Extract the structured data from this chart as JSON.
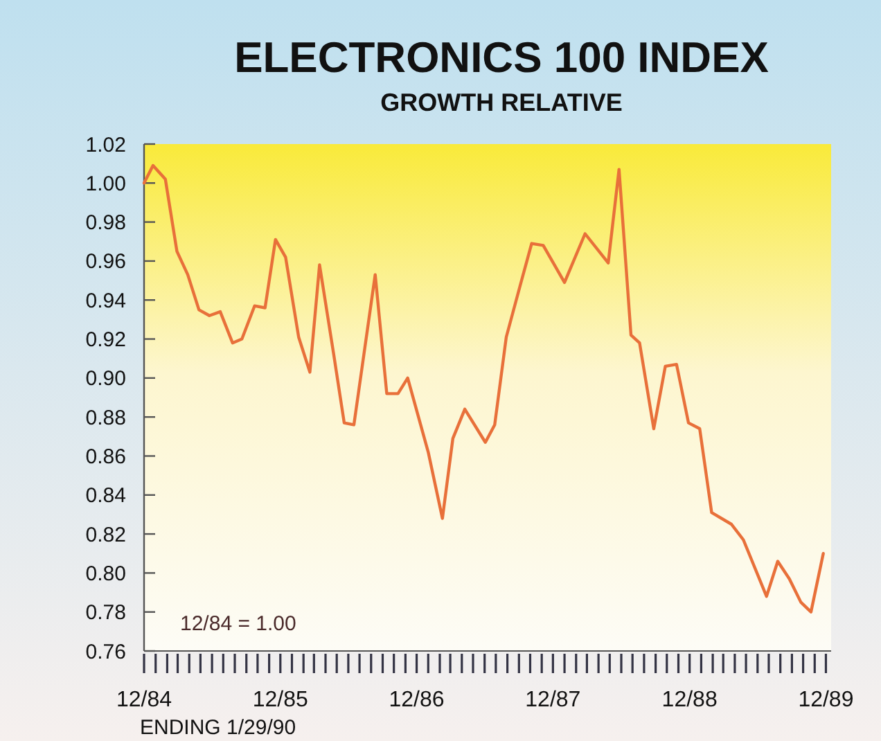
{
  "chart_data": {
    "type": "line",
    "title": "ELECTRONICS 100 INDEX",
    "subtitle": "GROWTH RELATIVE",
    "x": [
      "1984-12-01",
      "1984-12-25",
      "1985-01-27",
      "1985-02-27",
      "1985-03-28",
      "1985-04-27",
      "1985-05-25",
      "1985-06-23",
      "1985-07-26",
      "1985-08-20",
      "1985-09-23",
      "1985-10-21",
      "1985-11-18",
      "1985-12-15",
      "1986-01-19",
      "1986-02-18",
      "1986-03-16",
      "1986-04-23",
      "1986-05-21",
      "1986-06-16",
      "1986-08-12",
      "1986-09-12",
      "1986-10-12",
      "1986-11-07",
      "1987-01-01",
      "1987-02-08",
      "1987-03-08",
      "1987-04-09",
      "1987-06-03",
      "1987-06-28",
      "1987-07-29",
      "1987-09-05",
      "1987-10-05",
      "1987-11-05",
      "1988-01-01",
      "1988-02-25",
      "1988-04-27",
      "1988-05-26",
      "1988-06-27",
      "1988-07-20",
      "1988-08-27",
      "1988-09-27",
      "1988-10-27",
      "1988-11-28",
      "1988-12-28",
      "1989-01-29",
      "1989-03-23",
      "1989-04-24",
      "1989-06-25",
      "1989-07-25",
      "1989-08-25",
      "1989-09-25",
      "1989-10-22",
      "1989-11-24"
    ],
    "series": [
      {
        "color": "#e8703a",
        "values": [
          1.0,
          1.009,
          1.002,
          0.965,
          0.953,
          0.935,
          0.932,
          0.934,
          0.918,
          0.92,
          0.937,
          0.936,
          0.971,
          0.962,
          0.921,
          0.903,
          0.958,
          0.912,
          0.877,
          0.876,
          0.953,
          0.892,
          0.892,
          0.9,
          0.862,
          0.828,
          0.869,
          0.884,
          0.867,
          0.876,
          0.921,
          0.948,
          0.969,
          0.968,
          0.949,
          0.974,
          0.959,
          1.007,
          0.922,
          0.918,
          0.874,
          0.906,
          0.907,
          0.877,
          0.874,
          0.831,
          0.825,
          0.817,
          0.788,
          0.806,
          0.797,
          0.785,
          0.78,
          0.81
        ]
      }
    ],
    "xlim": [
      "1984-12-01",
      "1989-12-15"
    ],
    "xticks": [
      {
        "value": "1984-12-01",
        "label": "12/84"
      },
      {
        "value": "1985-01-01",
        "label": null
      },
      {
        "value": "1985-02-01",
        "label": null
      },
      {
        "value": "1985-03-01",
        "label": null
      },
      {
        "value": "1985-04-01",
        "label": null
      },
      {
        "value": "1985-05-01",
        "label": null
      },
      {
        "value": "1985-06-01",
        "label": null
      },
      {
        "value": "1985-07-01",
        "label": null
      },
      {
        "value": "1985-08-01",
        "label": null
      },
      {
        "value": "1985-09-01",
        "label": null
      },
      {
        "value": "1985-10-01",
        "label": null
      },
      {
        "value": "1985-11-01",
        "label": null
      },
      {
        "value": "1985-12-01",
        "label": "12/85"
      },
      {
        "value": "1986-01-01",
        "label": null
      },
      {
        "value": "1986-02-01",
        "label": null
      },
      {
        "value": "1986-03-01",
        "label": null
      },
      {
        "value": "1986-04-01",
        "label": null
      },
      {
        "value": "1986-05-01",
        "label": null
      },
      {
        "value": "1986-06-01",
        "label": null
      },
      {
        "value": "1986-07-01",
        "label": null
      },
      {
        "value": "1986-08-01",
        "label": null
      },
      {
        "value": "1986-09-01",
        "label": null
      },
      {
        "value": "1986-10-01",
        "label": null
      },
      {
        "value": "1986-11-01",
        "label": null
      },
      {
        "value": "1986-12-01",
        "label": "12/86"
      },
      {
        "value": "1987-01-01",
        "label": null
      },
      {
        "value": "1987-02-01",
        "label": null
      },
      {
        "value": "1987-03-01",
        "label": null
      },
      {
        "value": "1987-04-01",
        "label": null
      },
      {
        "value": "1987-05-01",
        "label": null
      },
      {
        "value": "1987-06-01",
        "label": null
      },
      {
        "value": "1987-07-01",
        "label": null
      },
      {
        "value": "1987-08-01",
        "label": null
      },
      {
        "value": "1987-09-01",
        "label": null
      },
      {
        "value": "1987-10-01",
        "label": null
      },
      {
        "value": "1987-11-01",
        "label": null
      },
      {
        "value": "1987-12-01",
        "label": "12/87"
      },
      {
        "value": "1988-01-01",
        "label": null
      },
      {
        "value": "1988-02-01",
        "label": null
      },
      {
        "value": "1988-03-01",
        "label": null
      },
      {
        "value": "1988-04-01",
        "label": null
      },
      {
        "value": "1988-05-01",
        "label": null
      },
      {
        "value": "1988-06-01",
        "label": null
      },
      {
        "value": "1988-07-01",
        "label": null
      },
      {
        "value": "1988-08-01",
        "label": null
      },
      {
        "value": "1988-09-01",
        "label": null
      },
      {
        "value": "1988-10-01",
        "label": null
      },
      {
        "value": "1988-11-01",
        "label": null
      },
      {
        "value": "1988-12-01",
        "label": "12/88"
      },
      {
        "value": "1989-01-01",
        "label": null
      },
      {
        "value": "1989-02-01",
        "label": null
      },
      {
        "value": "1989-03-01",
        "label": null
      },
      {
        "value": "1989-04-01",
        "label": null
      },
      {
        "value": "1989-05-01",
        "label": null
      },
      {
        "value": "1989-06-01",
        "label": null
      },
      {
        "value": "1989-07-01",
        "label": null
      },
      {
        "value": "1989-08-01",
        "label": null
      },
      {
        "value": "1989-09-01",
        "label": null
      },
      {
        "value": "1989-10-01",
        "label": null
      },
      {
        "value": "1989-11-01",
        "label": null
      },
      {
        "value": "1989-12-01",
        "label": "12/89"
      }
    ],
    "ylim": [
      0.76,
      1.02
    ],
    "yticks": [
      0.76,
      0.78,
      {
        "value": 0.8,
        "label": "0.80"
      },
      0.82,
      0.84,
      0.86,
      0.88,
      {
        "value": 0.9,
        "label": "0.90"
      },
      0.92,
      0.94,
      0.96,
      0.98,
      {
        "value": 1.0,
        "label": "1.00"
      },
      1.02
    ],
    "annotations": [
      "12/84 = 1.00",
      "ENDING 1/29/90"
    ],
    "grid": false,
    "marker": "none",
    "line_style": "solid"
  }
}
